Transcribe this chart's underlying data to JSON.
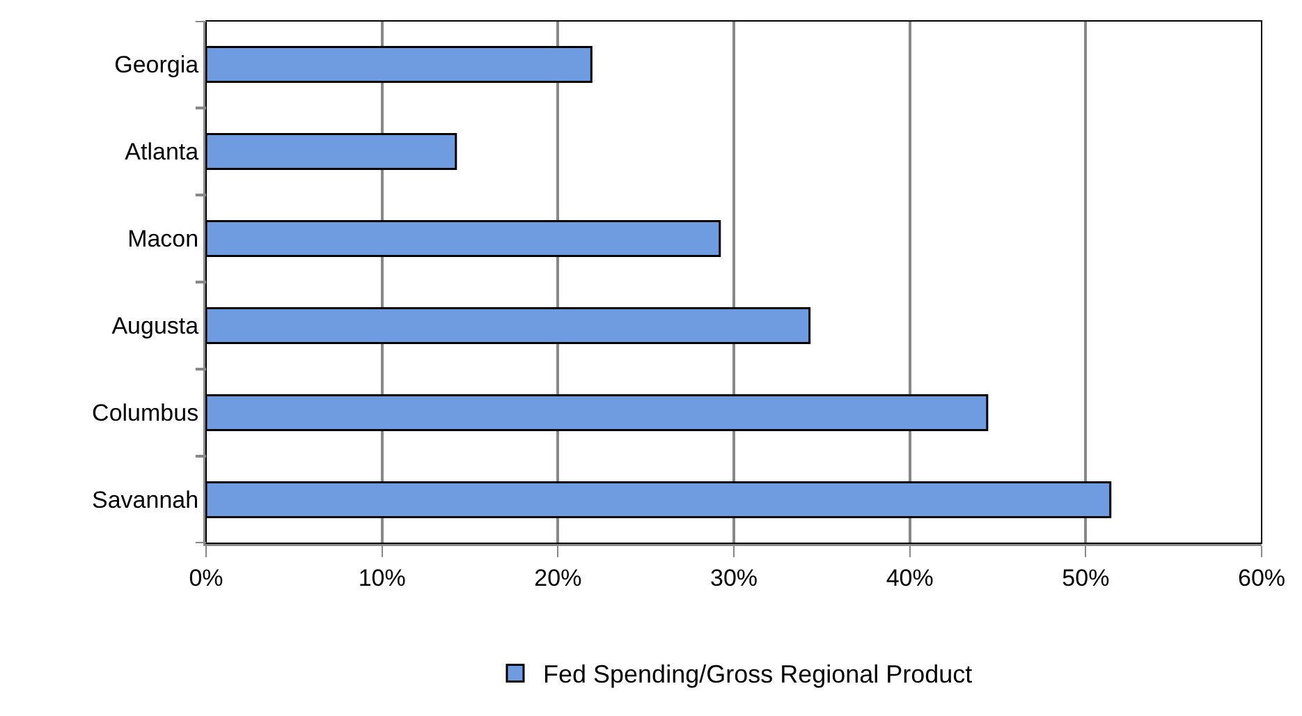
{
  "chart_data": {
    "type": "bar",
    "orientation": "horizontal",
    "categories": [
      "Georgia",
      "Atlanta",
      "Macon",
      "Augusta",
      "Columbus",
      "Savannah"
    ],
    "series": [
      {
        "name": "Fed Spending/Gross Regional Product",
        "color": "#6f9be0",
        "values": [
          21.9,
          14.2,
          29.2,
          34.3,
          44.4,
          51.4
        ]
      }
    ],
    "xlim": [
      0,
      60
    ],
    "xticks": [
      {
        "value": 0,
        "label": "0%"
      },
      {
        "value": 10,
        "label": "10%"
      },
      {
        "value": 20,
        "label": "20%"
      },
      {
        "value": 30,
        "label": "30%"
      },
      {
        "value": 40,
        "label": "40%"
      },
      {
        "value": 50,
        "label": "50%"
      },
      {
        "value": 60,
        "label": "60%"
      }
    ],
    "grid": "x",
    "legend": "bottom"
  }
}
